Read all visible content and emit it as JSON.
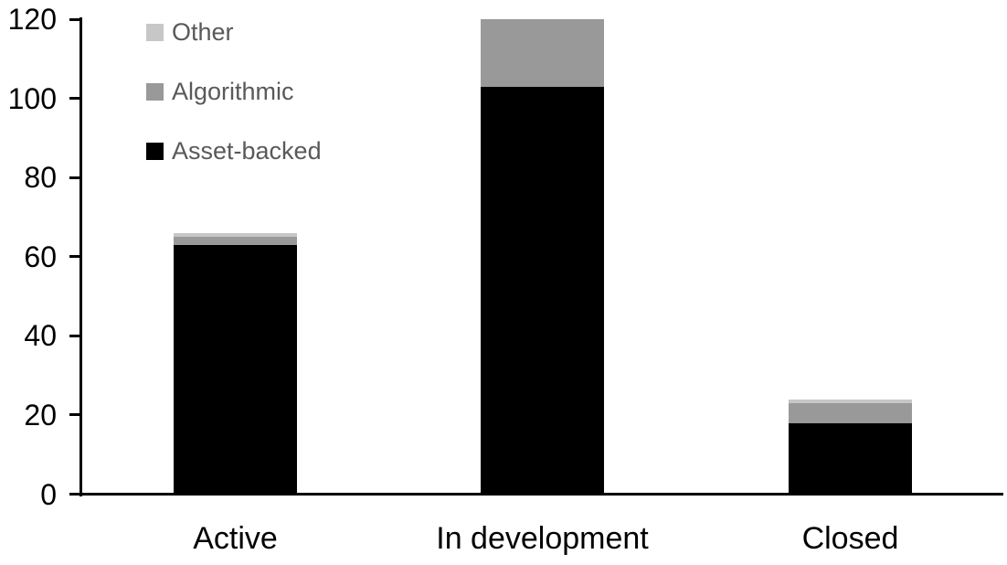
{
  "chart_data": {
    "type": "bar",
    "stacked": true,
    "title": "",
    "categories": [
      "Active",
      "In development",
      "Closed"
    ],
    "series": [
      {
        "name": "Asset-backed",
        "color": "#000000",
        "values": [
          63,
          103,
          18
        ]
      },
      {
        "name": "Algorithmic",
        "color": "#999999",
        "values": [
          2,
          17,
          5
        ]
      },
      {
        "name": "Other",
        "color": "#c7c7c7",
        "values": [
          1,
          0,
          1
        ]
      }
    ],
    "totals": [
      66,
      120,
      24
    ],
    "xlabel": "",
    "ylabel": "",
    "y_axis": {
      "min": 0,
      "max": 120,
      "tick_interval": 20,
      "tick_labels": [
        "0",
        "20",
        "40",
        "60",
        "80",
        "100",
        "120"
      ]
    },
    "legend": {
      "position": "top-left",
      "order": [
        "Other",
        "Algorithmic",
        "Asset-backed"
      ],
      "text_color": "#595959"
    },
    "grid": false,
    "axis_color": "#000000",
    "background_color": "#ffffff"
  }
}
